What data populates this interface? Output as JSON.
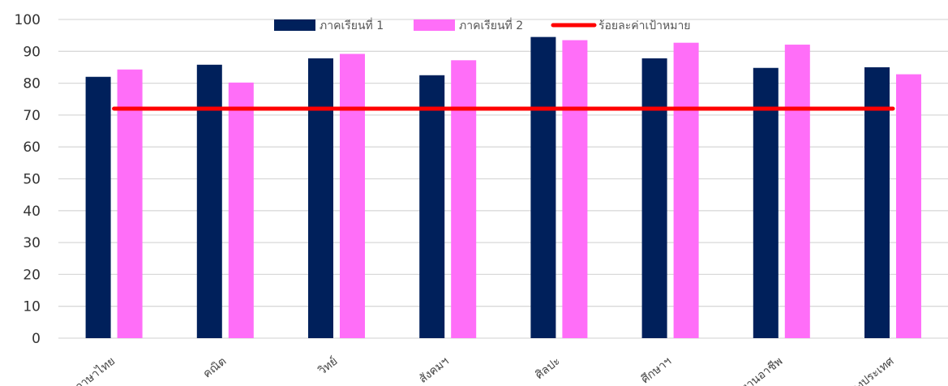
{
  "chart_data": {
    "type": "bar",
    "categories": [
      "ภาษาไทย",
      "คณิต",
      "วิทย์",
      "สังคมฯ",
      "ศิลปะ",
      "ศึกษาฯ",
      "งานอาชีพ",
      "ต่างประเทศ"
    ],
    "series": [
      {
        "name": "ภาคเรียนที่ 1",
        "type": "bar",
        "color": "#00205b",
        "values": [
          82,
          85.8,
          87.8,
          82.5,
          94.5,
          87.8,
          84.8,
          85
        ]
      },
      {
        "name": "ภาคเรียนที่ 2",
        "type": "bar",
        "color": "#ff6ef8",
        "values": [
          84.3,
          80.2,
          89.2,
          87.2,
          93.5,
          92.7,
          92.1,
          82.8
        ]
      },
      {
        "name": "ร้อยละค่าเป้าหมาย",
        "type": "line",
        "color": "#ff0000",
        "values": [
          72,
          72,
          72,
          72,
          72,
          72,
          72,
          72
        ]
      }
    ],
    "ylim": [
      0,
      100
    ],
    "yticks": [
      0,
      10,
      20,
      30,
      40,
      50,
      60,
      70,
      80,
      90,
      100
    ],
    "grid": true,
    "legend": "top-center",
    "gridline_color": "#d9d9d9"
  }
}
